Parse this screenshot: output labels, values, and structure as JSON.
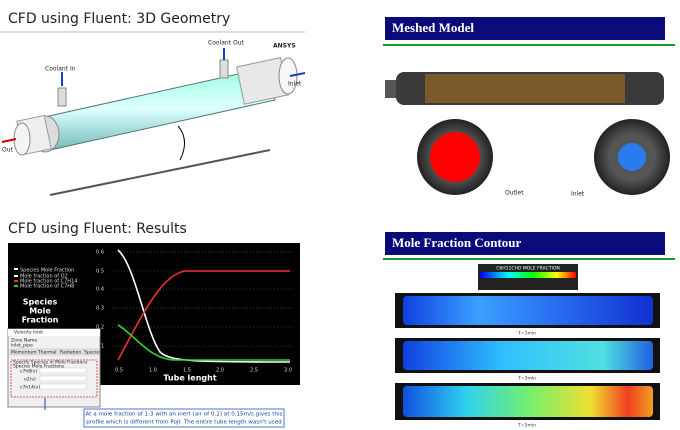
{
  "geometry": {
    "title": "CFD using Fluent: 3D Geometry",
    "coolant_in": "Coolant In",
    "coolant_out": "Coolant Out",
    "brand": "ANSYS",
    "inlet": "Inlet",
    "outlet": "Out"
  },
  "mesh": {
    "title": "Meshed Model",
    "outlet": "Outlet",
    "inlet": "Inlet"
  },
  "results": {
    "title": "CFD using Fluent: Results",
    "legend": [
      "Species Mole Fraction",
      "Mole fraction of O2",
      "Mole fraction of C7H14",
      "Mole fraction of C7H8"
    ],
    "side_label": [
      "Species",
      "Mole",
      "Fraction"
    ],
    "x_label": "Tube lenght",
    "yticks": [
      "0.6",
      "0.5",
      "0.4",
      "0.3",
      "0.2",
      "0.1"
    ],
    "xticks": [
      "0.5",
      "1.0",
      "1.5",
      "2.0",
      "2.5",
      "3.0"
    ],
    "dialog": {
      "title": "Velocity Inlet",
      "zone_label": "Zone Name",
      "zone": "inlet_pipe",
      "tabs": [
        "Momentum",
        "Thermal",
        "Radiation",
        "Species"
      ],
      "check": "Specify Species in Mole Fractions",
      "group": "Species Mole Fractions",
      "species": [
        "c7h8(v)",
        "o2(v)",
        "c7h14(v)"
      ]
    },
    "caption": [
      "At a mole fraction of 1:3 with an inert (air of 0.2) at 0.15m/s gives this",
      "profile which is different from PoJI. The entire tube length wasn't used"
    ]
  },
  "contour": {
    "title": "Mole Fraction Contour",
    "legend_title": "C6H11CHO MOLE FRACTION",
    "times": [
      "T=1min",
      "T=3min",
      "T=5min"
    ]
  }
}
